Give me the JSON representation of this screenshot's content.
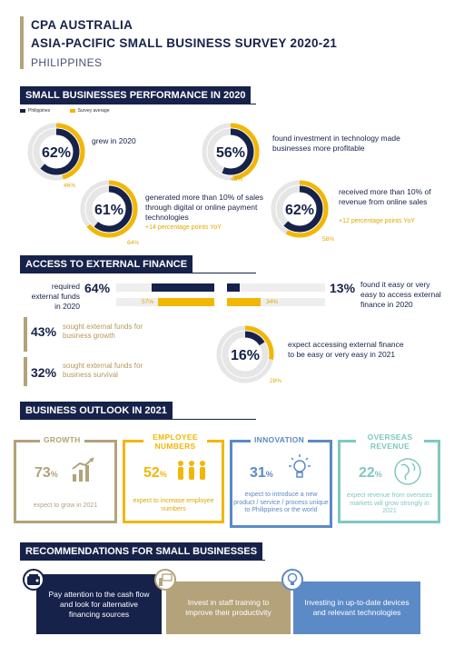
{
  "header": {
    "line1": "CPA AUSTRALIA",
    "line2": "ASIA-PACIFIC  SMALL BUSINESS  SURVEY  2020-21",
    "line3": "PHILIPPINES"
  },
  "colors": {
    "navy": "#16224a",
    "gold": "#f2b705",
    "tan": "#b3a27a",
    "blue": "#5b8ac6",
    "teal": "#7fc8c0"
  },
  "performance": {
    "title": "SMALL BUSINESSES PERFORMANCE IN 2020",
    "legend": [
      {
        "label": "Philippines",
        "color": "#16224a"
      },
      {
        "label": "Survey average",
        "color": "#f2b705"
      }
    ],
    "donuts": [
      {
        "value": "62%",
        "value_num": 62,
        "avg": "46%",
        "avg_num": 46,
        "text": "grew in 2020",
        "sub": ""
      },
      {
        "value": "56%",
        "value_num": 56,
        "avg": "48%",
        "avg_num": 48,
        "text": "found investment in technology made businesses more profitable",
        "sub": ""
      },
      {
        "value": "61%",
        "value_num": 61,
        "avg": "64%",
        "avg_num": 64,
        "text": "generated more than 10% of sales through digital or online payment technologies",
        "sub": "+14 percentage points YoY"
      },
      {
        "value": "62%",
        "value_num": 62,
        "avg": "58%",
        "avg_num": 58,
        "text": "received more than 10% of revenue from online sales",
        "sub": "+12 percentage points YoY"
      }
    ]
  },
  "finance": {
    "title": "ACCESS TO EXTERNAL FINANCE",
    "required": {
      "label": "required external funds in 2020",
      "value": "64%",
      "value_num": 64,
      "avg": "57%",
      "avg_num": 57
    },
    "easy": {
      "label": "found it easy or very easy to access external finance in 2020",
      "value": "13%",
      "value_num": 13,
      "avg": "34%",
      "avg_num": 34
    },
    "growth": {
      "value": "43%",
      "label": "sought external funds for business growth"
    },
    "survival": {
      "value": "32%",
      "label": "sought external funds for business survival"
    },
    "expect": {
      "value": "16%",
      "value_num": 16,
      "avg": "28%",
      "avg_num": 28,
      "label": "expect accessing external finance to be easy or very easy in 2021"
    }
  },
  "outlook": {
    "title": "BUSINESS OUTLOOK IN 2021",
    "cards": [
      {
        "title": "GROWTH",
        "pct": "73",
        "unit": "%",
        "desc": "expect to grow in 2021",
        "icon": "bar-chart-icon"
      },
      {
        "title": "EMPLOYEE NUMBERS",
        "pct": "52",
        "unit": "%",
        "desc": "expect to increase employee numbers",
        "icon": "people-icon"
      },
      {
        "title": "INNOVATION",
        "pct": "31",
        "unit": "%",
        "desc": "expect to introduce a new product / service / process unique to Philippines  or the world",
        "icon": "lightbulb-icon"
      },
      {
        "title": "OVERSEAS REVENUE",
        "pct": "22",
        "unit": "%",
        "desc": "expect revenue from overseas markets will grow strongly in 2021",
        "icon": "globe-icon"
      }
    ]
  },
  "recommendations": {
    "title": "RECOMMENDATIONS FOR SMALL  BUSINESSES",
    "items": [
      {
        "text": "Pay attention to the cash flow and look for alternative financing sources",
        "icon": "wallet-icon"
      },
      {
        "text": "Invest in staff training to improve their productivity",
        "icon": "training-icon"
      },
      {
        "text": "Investing in up-to-date devices and relevant technologies",
        "icon": "lightbulb-icon"
      }
    ]
  }
}
